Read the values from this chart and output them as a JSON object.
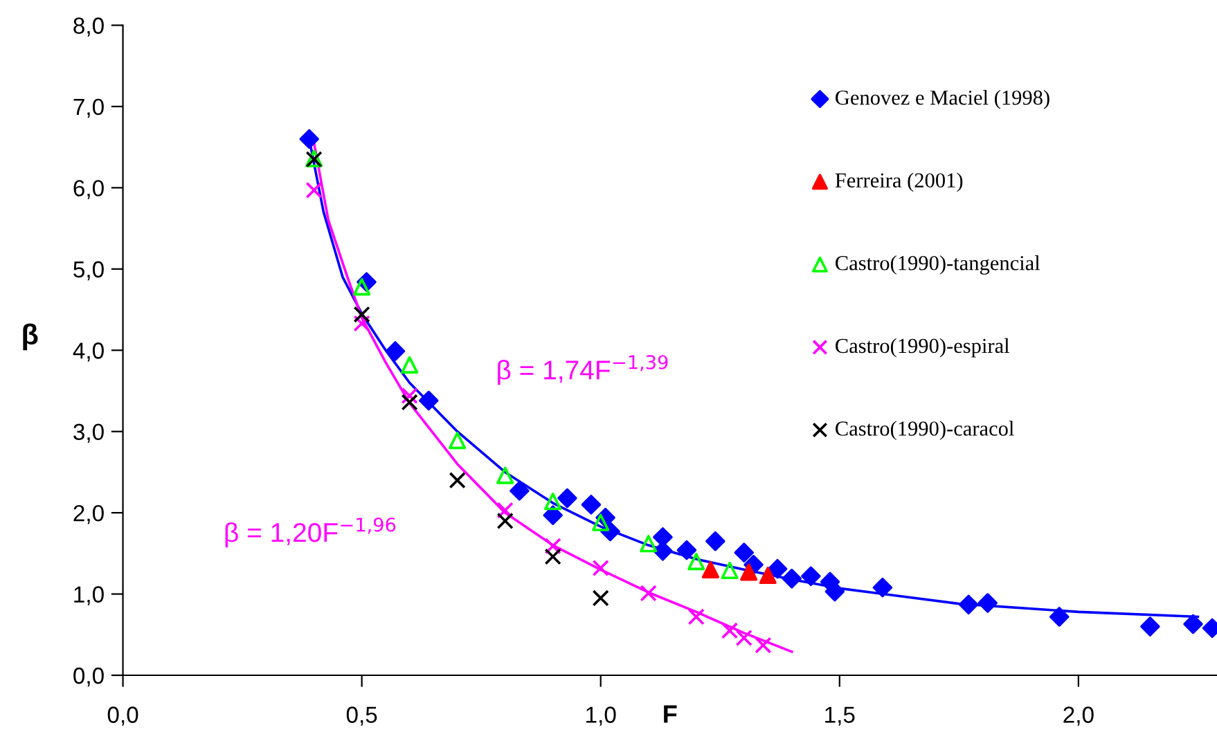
{
  "chart_data": {
    "type": "scatter",
    "xlabel": "F",
    "ylabel": "β",
    "xlim": [
      0,
      2.29
    ],
    "ylim": [
      0,
      8
    ],
    "xticks": [
      {
        "value": 0,
        "label": "0,0"
      },
      {
        "value": 0.5,
        "label": "0,5"
      },
      {
        "value": 1.0,
        "label": "1,0"
      },
      {
        "value": 1.5,
        "label": "1,5"
      },
      {
        "value": 2.0,
        "label": "2,0"
      }
    ],
    "yticks": [
      {
        "value": 0,
        "label": "0,0"
      },
      {
        "value": 1,
        "label": "1,0"
      },
      {
        "value": 2,
        "label": "2,0"
      },
      {
        "value": 3,
        "label": "3,0"
      },
      {
        "value": 4,
        "label": "4,0"
      },
      {
        "value": 5,
        "label": "5,0"
      },
      {
        "value": 6,
        "label": "6,0"
      },
      {
        "value": 7,
        "label": "7,0"
      },
      {
        "value": 8,
        "label": "8,0"
      }
    ],
    "grid": false,
    "legend": "top right",
    "series": [
      {
        "name": "Genovez e Maciel (1998)",
        "color": "#0000ff",
        "marker": "diamond",
        "x": [
          0.39,
          0.51,
          0.57,
          0.64,
          0.83,
          0.9,
          0.93,
          0.98,
          1.01,
          1.02,
          1.13,
          1.13,
          1.18,
          1.24,
          1.3,
          1.32,
          1.37,
          1.4,
          1.44,
          1.48,
          1.49,
          1.59,
          1.77,
          1.81,
          1.96,
          2.15,
          2.24,
          2.28
        ],
        "values": [
          6.6,
          4.84,
          3.99,
          3.38,
          2.27,
          1.97,
          2.18,
          2.1,
          1.94,
          1.77,
          1.7,
          1.53,
          1.54,
          1.65,
          1.51,
          1.36,
          1.31,
          1.19,
          1.22,
          1.15,
          1.03,
          1.08,
          0.87,
          0.89,
          0.72,
          0.6,
          0.63,
          0.58
        ]
      },
      {
        "name": "Ferreira (2001)",
        "color": "#ff0000",
        "marker": "triangle",
        "x": [
          1.23,
          1.31,
          1.35
        ],
        "values": [
          1.3,
          1.27,
          1.23
        ]
      },
      {
        "name": "Castro(1990)-tangencial",
        "color": "#00ff00",
        "marker": "triangle_open",
        "x": [
          0.4,
          0.5,
          0.6,
          0.7,
          0.8,
          0.9,
          1.0,
          1.1,
          1.2,
          1.27
        ],
        "values": [
          6.36,
          4.78,
          3.82,
          2.89,
          2.46,
          2.14,
          1.88,
          1.62,
          1.4,
          1.29
        ]
      },
      {
        "name": "Castro(1990)-espiral",
        "color": "#ff00ff",
        "marker": "cross",
        "x": [
          0.4,
          0.5,
          0.6,
          0.8,
          0.9,
          1.0,
          1.1,
          1.2,
          1.27,
          1.3,
          1.34
        ],
        "values": [
          5.97,
          4.33,
          3.44,
          2.03,
          1.59,
          1.32,
          1.01,
          0.72,
          0.55,
          0.46,
          0.37
        ]
      },
      {
        "name": "Castro(1990)-caracol",
        "color": "#000000",
        "marker": "cross",
        "x": [
          0.4,
          0.5,
          0.6,
          0.7,
          0.8,
          0.9,
          1.0
        ],
        "values": [
          6.35,
          4.44,
          3.36,
          2.4,
          1.9,
          1.46,
          0.95
        ]
      },
      {
        "type": "line",
        "color": "#0000ff",
        "marker": "none",
        "line_style": "solid",
        "x": [
          0.39,
          0.42,
          0.46,
          0.5,
          0.55,
          0.6,
          0.7,
          0.8,
          0.9,
          1.0,
          1.1,
          1.2,
          1.3,
          1.4,
          1.5,
          1.75,
          2.0,
          2.25
        ],
        "values": [
          6.6,
          5.7,
          4.9,
          4.45,
          4.0,
          3.6,
          3.0,
          2.5,
          2.12,
          1.83,
          1.6,
          1.43,
          1.3,
          1.18,
          1.07,
          0.88,
          0.78,
          0.72
        ]
      },
      {
        "type": "line",
        "color": "#ff00ff",
        "marker": "none",
        "line_style": "solid",
        "x": [
          0.4,
          0.43,
          0.47,
          0.5,
          0.55,
          0.6,
          0.7,
          0.8,
          0.9,
          1.0,
          1.1,
          1.2,
          1.3,
          1.4
        ],
        "values": [
          6.55,
          5.6,
          4.9,
          4.4,
          3.85,
          3.35,
          2.6,
          2.0,
          1.6,
          1.3,
          1.02,
          0.78,
          0.52,
          0.29
        ]
      }
    ],
    "annotations": [
      "β = 1,74F$^{−1,39}$",
      "β = 1,20F$^{−1,96}$"
    ]
  }
}
